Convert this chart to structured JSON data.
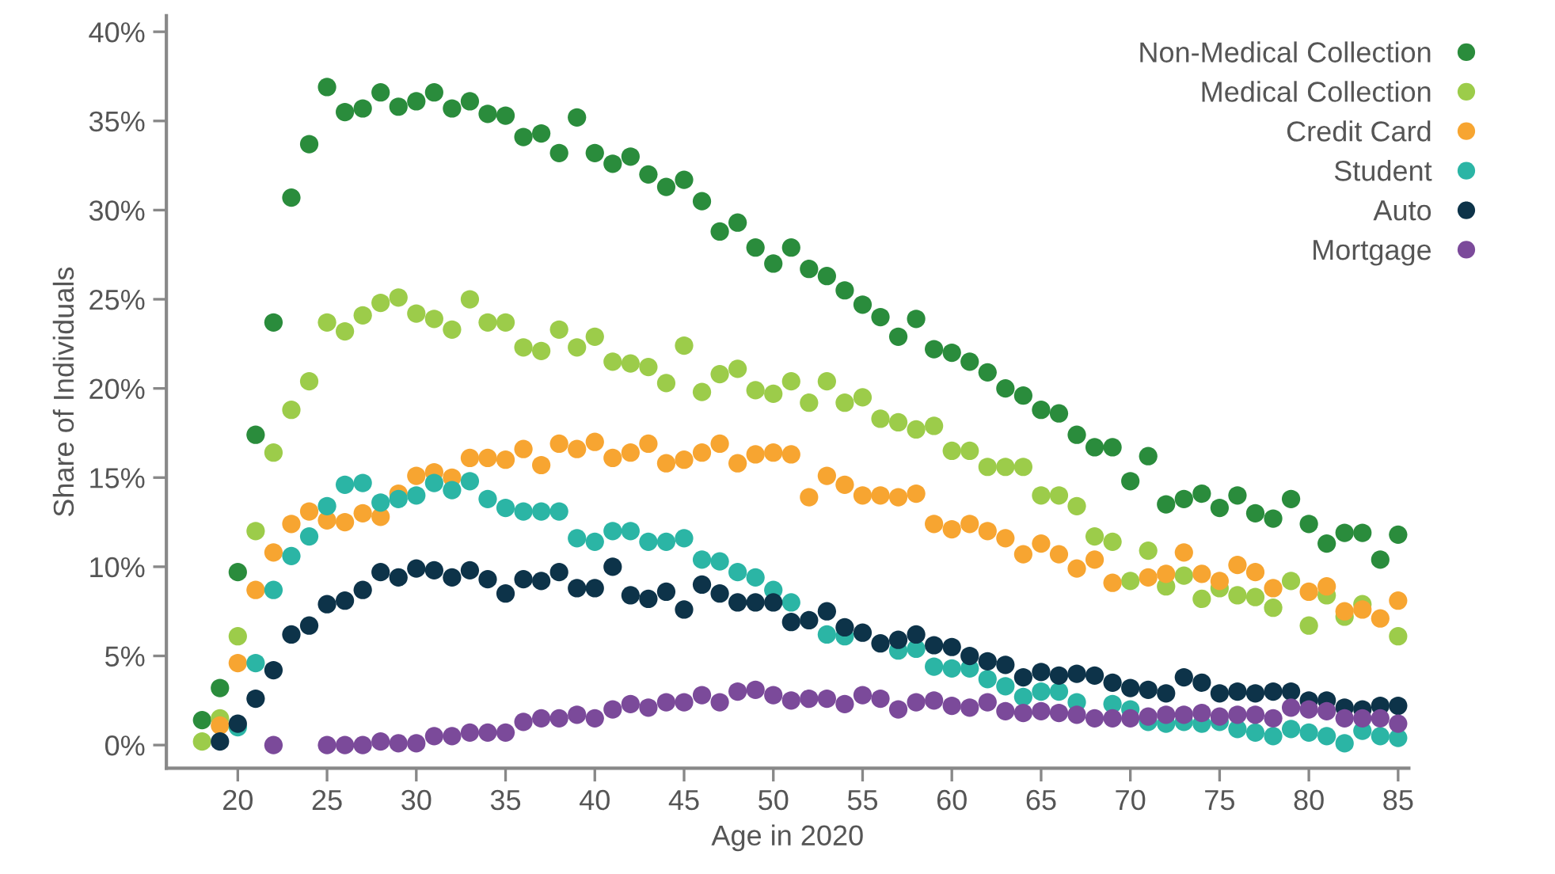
{
  "chart_data": {
    "type": "scatter",
    "xlabel": "Age in 2020",
    "ylabel": "Share of Individuals",
    "marker": "circle",
    "legend": "top right",
    "grid": false,
    "x": [
      18,
      19,
      20,
      21,
      22,
      23,
      24,
      25,
      26,
      27,
      28,
      29,
      30,
      31,
      32,
      33,
      34,
      35,
      36,
      37,
      38,
      39,
      40,
      41,
      42,
      43,
      44,
      45,
      46,
      47,
      48,
      49,
      50,
      51,
      52,
      53,
      54,
      55,
      56,
      57,
      58,
      59,
      60,
      61,
      62,
      63,
      64,
      65,
      66,
      67,
      68,
      69,
      70,
      71,
      72,
      73,
      74,
      75,
      76,
      77,
      78,
      79,
      80,
      81,
      82,
      83,
      84,
      85
    ],
    "xlim": [
      16,
      85.6
    ],
    "xticks": [
      20,
      25,
      30,
      35,
      40,
      45,
      50,
      55,
      60,
      65,
      70,
      75,
      80,
      85
    ],
    "ylim": [
      -1.3,
      40.9
    ],
    "yticks": [
      {
        "value": 0,
        "label": "0%"
      },
      {
        "value": 5,
        "label": "5%"
      },
      {
        "value": 10,
        "label": "10%"
      },
      {
        "value": 15,
        "label": "15%"
      },
      {
        "value": 20,
        "label": "20%"
      },
      {
        "value": 25,
        "label": "25%"
      },
      {
        "value": 30,
        "label": "30%"
      },
      {
        "value": 35,
        "label": "35%"
      },
      {
        "value": 40,
        "label": "40%"
      }
    ],
    "series": [
      {
        "name": "Non-Medical Collection",
        "color": "#2a8c3c",
        "values": [
          1.4,
          3.2,
          9.7,
          17.4,
          23.7,
          30.7,
          33.7,
          36.9,
          35.5,
          35.7,
          36.6,
          35.8,
          36.1,
          36.6,
          35.7,
          36.1,
          35.4,
          35.3,
          34.1,
          34.3,
          33.2,
          35.2,
          33.2,
          32.6,
          33.0,
          32.0,
          31.3,
          31.7,
          30.5,
          28.8,
          29.3,
          27.9,
          27.0,
          27.9,
          26.7,
          26.3,
          25.5,
          24.7,
          24.0,
          22.9,
          23.9,
          22.2,
          22.0,
          21.5,
          20.9,
          20.0,
          19.6,
          18.8,
          18.6,
          17.4,
          16.7,
          16.7,
          14.8,
          16.2,
          13.5,
          13.8,
          14.1,
          13.3,
          14.0,
          13.0,
          12.7,
          13.8,
          12.4,
          11.3,
          11.9,
          11.9,
          10.4,
          11.8
        ]
      },
      {
        "name": "Medical Collection",
        "color": "#9ccc4a",
        "values": [
          0.2,
          1.5,
          6.1,
          12.0,
          16.4,
          18.8,
          20.4,
          23.7,
          23.2,
          24.1,
          24.8,
          25.1,
          24.2,
          23.9,
          23.3,
          25.0,
          23.7,
          23.7,
          22.3,
          22.1,
          23.3,
          22.3,
          22.9,
          21.5,
          21.4,
          21.2,
          20.3,
          22.4,
          19.8,
          20.8,
          21.1,
          19.9,
          19.7,
          20.4,
          19.2,
          20.4,
          19.2,
          19.5,
          18.3,
          18.1,
          17.7,
          17.9,
          16.5,
          16.5,
          15.6,
          15.6,
          15.6,
          14.0,
          14.0,
          13.4,
          11.7,
          11.4,
          9.2,
          10.9,
          8.9,
          9.5,
          8.2,
          8.8,
          8.4,
          8.3,
          7.7,
          9.2,
          6.7,
          8.4,
          7.2,
          7.9,
          null,
          6.1
        ]
      },
      {
        "name": "Credit Card",
        "color": "#f7a531",
        "values": [
          null,
          1.1,
          4.6,
          8.7,
          10.8,
          12.4,
          13.1,
          12.6,
          12.5,
          13.0,
          12.8,
          14.1,
          15.1,
          15.3,
          15.0,
          16.1,
          16.1,
          16.0,
          16.6,
          15.7,
          16.9,
          16.6,
          17.0,
          16.1,
          16.4,
          16.9,
          15.8,
          16.0,
          16.4,
          16.9,
          15.8,
          16.3,
          16.4,
          16.3,
          13.9,
          15.1,
          14.6,
          14.0,
          14.0,
          13.9,
          14.1,
          12.4,
          12.1,
          12.4,
          12.0,
          11.6,
          10.7,
          11.3,
          10.7,
          9.9,
          10.4,
          9.1,
          null,
          9.4,
          9.6,
          10.8,
          9.6,
          9.2,
          10.1,
          9.7,
          8.8,
          null,
          8.6,
          8.9,
          7.5,
          7.6,
          7.1,
          8.1
        ]
      },
      {
        "name": "Student",
        "color": "#2bb5a5",
        "values": [
          null,
          null,
          1.0,
          4.6,
          8.7,
          10.6,
          11.7,
          13.4,
          14.6,
          14.7,
          13.6,
          13.8,
          14.0,
          14.7,
          14.3,
          14.8,
          13.8,
          13.3,
          13.1,
          13.1,
          13.1,
          11.6,
          11.4,
          12.0,
          12.0,
          11.4,
          11.4,
          11.6,
          10.4,
          10.3,
          9.7,
          9.4,
          8.7,
          8.0,
          null,
          6.2,
          6.1,
          null,
          null,
          5.3,
          5.4,
          4.4,
          4.3,
          4.3,
          3.7,
          3.3,
          2.7,
          3.0,
          3.0,
          2.4,
          null,
          2.3,
          2.0,
          1.3,
          1.2,
          1.3,
          1.2,
          1.3,
          0.9,
          0.7,
          0.5,
          0.9,
          0.7,
          0.5,
          0.1,
          0.8,
          0.5,
          0.4
        ]
      },
      {
        "name": "Auto",
        "color": "#0d3349",
        "values": [
          null,
          0.2,
          1.2,
          2.6,
          4.2,
          6.2,
          6.7,
          7.9,
          8.1,
          8.7,
          9.7,
          9.4,
          9.9,
          9.8,
          9.4,
          9.8,
          9.3,
          8.5,
          9.3,
          9.2,
          9.7,
          8.8,
          8.8,
          10.0,
          8.4,
          8.2,
          8.6,
          7.6,
          9.0,
          8.5,
          8.0,
          8.0,
          8.0,
          6.9,
          7.0,
          7.5,
          6.6,
          6.3,
          5.7,
          5.9,
          6.2,
          5.6,
          5.5,
          5.0,
          4.7,
          4.5,
          3.8,
          4.1,
          3.9,
          4.0,
          3.9,
          3.5,
          3.2,
          3.1,
          2.9,
          3.8,
          3.5,
          2.9,
          3.0,
          2.9,
          3.0,
          3.0,
          2.5,
          2.5,
          2.1,
          2.0,
          2.2,
          2.2
        ]
      },
      {
        "name": "Mortgage",
        "color": "#7b4a9a",
        "values": [
          null,
          null,
          null,
          null,
          0.0,
          null,
          null,
          0.0,
          0.0,
          0.0,
          0.2,
          0.1,
          0.1,
          0.5,
          0.5,
          0.7,
          0.7,
          0.7,
          1.3,
          1.5,
          1.5,
          1.7,
          1.5,
          2.0,
          2.3,
          2.1,
          2.4,
          2.4,
          2.8,
          2.4,
          3.0,
          3.1,
          2.8,
          2.5,
          2.6,
          2.6,
          2.3,
          2.8,
          2.6,
          2.0,
          2.4,
          2.5,
          2.2,
          2.1,
          2.4,
          1.9,
          1.8,
          1.9,
          1.8,
          1.7,
          1.5,
          1.5,
          1.5,
          1.6,
          1.7,
          1.7,
          1.8,
          1.6,
          1.7,
          1.7,
          1.5,
          2.1,
          2.0,
          1.9,
          1.5,
          1.5,
          1.5,
          1.2
        ]
      }
    ]
  }
}
